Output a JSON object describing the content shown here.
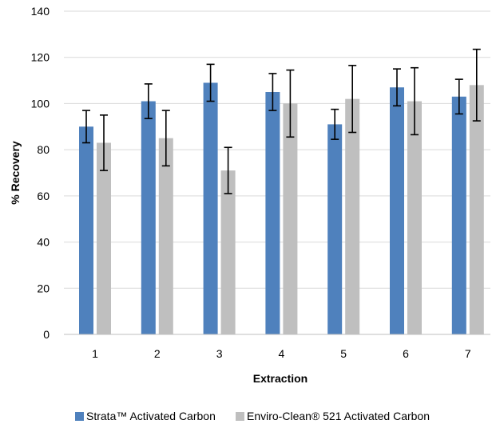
{
  "chart_data": {
    "type": "bar",
    "title": "",
    "xlabel": "Extraction",
    "ylabel": "% Recovery",
    "ylim": [
      0,
      140
    ],
    "yticks": [
      0,
      20,
      40,
      60,
      80,
      100,
      120,
      140
    ],
    "categories": [
      "1",
      "2",
      "3",
      "4",
      "5",
      "6",
      "7"
    ],
    "grid": "horizontal",
    "legend_position": "bottom",
    "series": [
      {
        "name": "Strata™ Activated Carbon",
        "color": "#4f81bd",
        "values": [
          90,
          101,
          109,
          105,
          91,
          107,
          103
        ],
        "errors": [
          7,
          7.5,
          8,
          8,
          6.5,
          8,
          7.5
        ]
      },
      {
        "name": "Enviro-Clean® 521 Activated Carbon",
        "color": "#bfbfbf",
        "values": [
          83,
          85,
          71,
          100,
          102,
          101,
          108
        ],
        "errors": [
          12,
          12,
          10,
          14.5,
          14.5,
          14.5,
          15.5
        ]
      }
    ]
  }
}
